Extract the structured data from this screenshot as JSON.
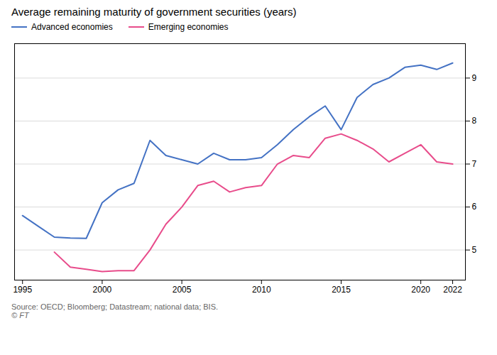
{
  "chart_data": {
    "type": "line",
    "title": "Average remaining maturity of government securities (years)",
    "annotations": [
      "Source: OECD; Bloomberg; Datastream; national data; BIS.",
      "© FT"
    ],
    "x": [
      1995,
      1996,
      1997,
      1998,
      1999,
      2000,
      2001,
      2002,
      2003,
      2004,
      2005,
      2006,
      2007,
      2008,
      2009,
      2010,
      2011,
      2012,
      2013,
      2014,
      2015,
      2016,
      2017,
      2018,
      2019,
      2020,
      2021,
      2022
    ],
    "series": [
      {
        "name": "Advanced economies",
        "color": "#4472c4",
        "values": [
          5.8,
          5.55,
          5.3,
          5.28,
          5.27,
          6.1,
          6.4,
          6.55,
          7.55,
          7.2,
          7.1,
          7.0,
          7.25,
          7.1,
          7.1,
          7.15,
          7.45,
          7.8,
          8.1,
          8.35,
          7.8,
          8.55,
          8.85,
          9.0,
          9.25,
          9.3,
          9.2,
          9.35
        ]
      },
      {
        "name": "Emerging economies",
        "color": "#e84c8b",
        "values": [
          null,
          null,
          4.95,
          4.6,
          4.55,
          4.5,
          4.52,
          4.52,
          5.0,
          5.6,
          6.0,
          6.5,
          6.6,
          6.35,
          6.45,
          6.5,
          7.0,
          7.2,
          7.15,
          7.6,
          7.7,
          7.55,
          7.35,
          7.05,
          7.25,
          7.45,
          7.05,
          7.0
        ]
      }
    ],
    "xlim": [
      1994.5,
      2022.8
    ],
    "ylim": [
      4.3,
      9.8
    ],
    "xticks": [
      1995,
      2000,
      2005,
      2010,
      2015,
      2020,
      2022
    ],
    "yticks": [
      5,
      6,
      7,
      8,
      9
    ],
    "grid": true,
    "legend": "top left"
  }
}
